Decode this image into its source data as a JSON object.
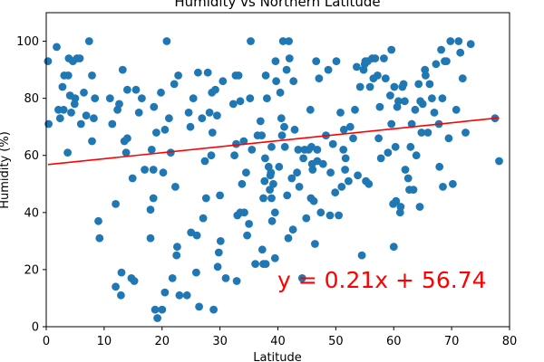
{
  "chart_data": {
    "type": "scatter",
    "title": "Humidity vs Northern Latitude",
    "xlabel": "Latitude",
    "ylabel": "Humidity (%)",
    "xlim": [
      0,
      80
    ],
    "ylim": [
      0,
      110
    ],
    "xticks": [
      0,
      10,
      20,
      30,
      40,
      50,
      60,
      70,
      80
    ],
    "yticks": [
      0,
      20,
      40,
      60,
      80,
      100
    ],
    "grid": false,
    "point_color": "#1f77b4",
    "line_color": "#ff0000",
    "regression": {
      "slope": 0.21,
      "intercept": 56.74,
      "label": "y = 0.21x + 56.74"
    },
    "points": [
      [
        0.3,
        93
      ],
      [
        0.4,
        71
      ],
      [
        1.8,
        98
      ],
      [
        2.1,
        76
      ],
      [
        2.4,
        73
      ],
      [
        2.8,
        84
      ],
      [
        3.0,
        76
      ],
      [
        3.1,
        88
      ],
      [
        3.7,
        61
      ],
      [
        3.9,
        94
      ],
      [
        3.8,
        88
      ],
      [
        4.1,
        81
      ],
      [
        4.3,
        75
      ],
      [
        4.6,
        93
      ],
      [
        4.9,
        78
      ],
      [
        5.0,
        80
      ],
      [
        5.3,
        94
      ],
      [
        5.8,
        94
      ],
      [
        6.0,
        71
      ],
      [
        6.5,
        82
      ],
      [
        6.9,
        74
      ],
      [
        7.4,
        100
      ],
      [
        7.9,
        65
      ],
      [
        8.2,
        73
      ],
      [
        7.9,
        88
      ],
      [
        8.4,
        80
      ],
      [
        9.0,
        37
      ],
      [
        9.2,
        31
      ],
      [
        11.0,
        80
      ],
      [
        11.4,
        71
      ],
      [
        12.0,
        14
      ],
      [
        12.0,
        43
      ],
      [
        12.3,
        76
      ],
      [
        12.6,
        78
      ],
      [
        12.9,
        11
      ],
      [
        13.0,
        19
      ],
      [
        13.2,
        90
      ],
      [
        13.5,
        65
      ],
      [
        13.8,
        61
      ],
      [
        14.0,
        83
      ],
      [
        14.0,
        66
      ],
      [
        14.7,
        17
      ],
      [
        14.9,
        52
      ],
      [
        15.2,
        16
      ],
      [
        15.5,
        83
      ],
      [
        16.0,
        75
      ],
      [
        16.5,
        80
      ],
      [
        17.0,
        55
      ],
      [
        18.0,
        41
      ],
      [
        18.0,
        31
      ],
      [
        18.2,
        62
      ],
      [
        18.5,
        45
      ],
      [
        18.5,
        55
      ],
      [
        18.6,
        77
      ],
      [
        18.8,
        6
      ],
      [
        19.0,
        68
      ],
      [
        19.2,
        3
      ],
      [
        19.8,
        82
      ],
      [
        20.0,
        6
      ],
      [
        20.2,
        54
      ],
      [
        20.5,
        69
      ],
      [
        20.5,
        12
      ],
      [
        20.8,
        100
      ],
      [
        21.2,
        73
      ],
      [
        21.5,
        61
      ],
      [
        21.8,
        17
      ],
      [
        22.1,
        85
      ],
      [
        22.3,
        49
      ],
      [
        22.5,
        25
      ],
      [
        22.6,
        28
      ],
      [
        22.8,
        88
      ],
      [
        23.0,
        11
      ],
      [
        24.3,
        11
      ],
      [
        24.6,
        75
      ],
      [
        24.9,
        70
      ],
      [
        25.0,
        33
      ],
      [
        25.4,
        80
      ],
      [
        25.9,
        19
      ],
      [
        26.0,
        32
      ],
      [
        26.2,
        89
      ],
      [
        26.4,
        7
      ],
      [
        26.9,
        73
      ],
      [
        27.1,
        38
      ],
      [
        27.4,
        58
      ],
      [
        27.6,
        45
      ],
      [
        27.9,
        89
      ],
      [
        28.2,
        75
      ],
      [
        28.5,
        60
      ],
      [
        28.6,
        82
      ],
      [
        28.7,
        68
      ],
      [
        28.9,
        6
      ],
      [
        29.2,
        83
      ],
      [
        29.5,
        74
      ],
      [
        29.6,
        21
      ],
      [
        29.8,
        26
      ],
      [
        30.0,
        46
      ],
      [
        30.1,
        30
      ],
      [
        30.5,
        86
      ],
      [
        31.0,
        17
      ],
      [
        32.3,
        78
      ],
      [
        32.5,
        60
      ],
      [
        32.8,
        64
      ],
      [
        32.9,
        16
      ],
      [
        32.7,
        88
      ],
      [
        33.0,
        39
      ],
      [
        33.2,
        88
      ],
      [
        33.5,
        79
      ],
      [
        33.8,
        50
      ],
      [
        34.1,
        65
      ],
      [
        34.2,
        40
      ],
      [
        34.5,
        54
      ],
      [
        34.7,
        32
      ],
      [
        35.0,
        36
      ],
      [
        35.2,
        80
      ],
      [
        35.3,
        100
      ],
      [
        35.5,
        62
      ],
      [
        36.1,
        22
      ],
      [
        36.5,
        67
      ],
      [
        37.0,
        72
      ],
      [
        37.2,
        67
      ],
      [
        37.3,
        27
      ],
      [
        37.5,
        22
      ],
      [
        37.5,
        45
      ],
      [
        37.7,
        51
      ],
      [
        37.8,
        59
      ],
      [
        37.9,
        22
      ],
      [
        37.9,
        88
      ],
      [
        38.1,
        80
      ],
      [
        38.4,
        56
      ],
      [
        38.6,
        48
      ],
      [
        38.7,
        53
      ],
      [
        38.8,
        54
      ],
      [
        38.9,
        63
      ],
      [
        38.9,
        45
      ],
      [
        39.0,
        37
      ],
      [
        39.2,
        50
      ],
      [
        39.5,
        40
      ],
      [
        39.5,
        24
      ],
      [
        39.6,
        93
      ],
      [
        39.7,
        86
      ],
      [
        40.2,
        56
      ],
      [
        40.4,
        82
      ],
      [
        40.6,
        73
      ],
      [
        40.7,
        67
      ],
      [
        40.9,
        100
      ],
      [
        41.1,
        70
      ],
      [
        41.2,
        63
      ],
      [
        41.5,
        90
      ],
      [
        41.6,
        46
      ],
      [
        41.8,
        31
      ],
      [
        41.9,
        100
      ],
      [
        42.0,
        94
      ],
      [
        42.4,
        52
      ],
      [
        42.6,
        34
      ],
      [
        42.7,
        86
      ],
      [
        42.9,
        69
      ],
      [
        43.3,
        54
      ],
      [
        43.5,
        62
      ],
      [
        43.7,
        49
      ],
      [
        44.2,
        17
      ],
      [
        44.4,
        59
      ],
      [
        44.6,
        62
      ],
      [
        44.9,
        38
      ],
      [
        45.3,
        62
      ],
      [
        45.6,
        76
      ],
      [
        45.8,
        63
      ],
      [
        45.9,
        57
      ],
      [
        46.0,
        55
      ],
      [
        46.2,
        44
      ],
      [
        46.4,
        29
      ],
      [
        46.6,
        93
      ],
      [
        46.8,
        58
      ],
      [
        46.8,
        62
      ],
      [
        47.1,
        87
      ],
      [
        47.4,
        40
      ],
      [
        47.8,
        57
      ],
      [
        48.3,
        67
      ],
      [
        48.7,
        90
      ],
      [
        49.0,
        39
      ],
      [
        49.1,
        54
      ],
      [
        49.5,
        64
      ],
      [
        49.9,
        47
      ],
      [
        50.1,
        93
      ],
      [
        50.5,
        39
      ],
      [
        50.8,
        75
      ],
      [
        51.0,
        49
      ],
      [
        51.3,
        62
      ],
      [
        51.4,
        69
      ],
      [
        51.6,
        55
      ],
      [
        51.7,
        59
      ],
      [
        52.2,
        51
      ],
      [
        52.5,
        70
      ],
      [
        53.0,
        66
      ],
      [
        53.3,
        76
      ],
      [
        53.6,
        91
      ],
      [
        53.8,
        53
      ],
      [
        54.2,
        84
      ],
      [
        54.5,
        25
      ],
      [
        54.8,
        90
      ],
      [
        55.0,
        92
      ],
      [
        55.2,
        51
      ],
      [
        55.5,
        93
      ],
      [
        55.7,
        50
      ],
      [
        55.9,
        84
      ],
      [
        56.3,
        94
      ],
      [
        56.5,
        87
      ],
      [
        56.8,
        94
      ],
      [
        57.2,
        88
      ],
      [
        57.4,
        66
      ],
      [
        57.6,
        77
      ],
      [
        57.8,
        59
      ],
      [
        58.3,
        94
      ],
      [
        58.6,
        87
      ],
      [
        59.0,
        61
      ],
      [
        59.4,
        81
      ],
      [
        59.6,
        97
      ],
      [
        59.6,
        71
      ],
      [
        59.9,
        43
      ],
      [
        60.0,
        28
      ],
      [
        60.1,
        84
      ],
      [
        60.3,
        63
      ],
      [
        60.4,
        44
      ],
      [
        60.6,
        77
      ],
      [
        60.8,
        79
      ],
      [
        61.1,
        40
      ],
      [
        61.2,
        42
      ],
      [
        61.5,
        84
      ],
      [
        61.7,
        85
      ],
      [
        61.9,
        79
      ],
      [
        62.0,
        55
      ],
      [
        62.5,
        52
      ],
      [
        62.7,
        48
      ],
      [
        62.9,
        63
      ],
      [
        63.1,
        71
      ],
      [
        63.4,
        48
      ],
      [
        63.7,
        76
      ],
      [
        63.9,
        60
      ],
      [
        64.3,
        85
      ],
      [
        64.5,
        42
      ],
      [
        64.6,
        79
      ],
      [
        64.8,
        68
      ],
      [
        65.0,
        78
      ],
      [
        65.4,
        90
      ],
      [
        65.5,
        88
      ],
      [
        65.9,
        68
      ],
      [
        66.2,
        85
      ],
      [
        66.6,
        80
      ],
      [
        67.0,
        75
      ],
      [
        67.3,
        92
      ],
      [
        67.8,
        71
      ],
      [
        67.9,
        56
      ],
      [
        68.2,
        97
      ],
      [
        68.4,
        80
      ],
      [
        68.5,
        49
      ],
      [
        68.8,
        93
      ],
      [
        69.1,
        93
      ],
      [
        69.5,
        66
      ],
      [
        69.8,
        100
      ],
      [
        70.2,
        50
      ],
      [
        70.8,
        76
      ],
      [
        71.2,
        100
      ],
      [
        71.5,
        96
      ],
      [
        71.9,
        87
      ],
      [
        72.4,
        68
      ],
      [
        73.3,
        99
      ],
      [
        77.5,
        73
      ],
      [
        78.2,
        58
      ],
      [
        45.7,
        45
      ],
      [
        33.5,
        40
      ],
      [
        55.1,
        93
      ]
    ]
  }
}
